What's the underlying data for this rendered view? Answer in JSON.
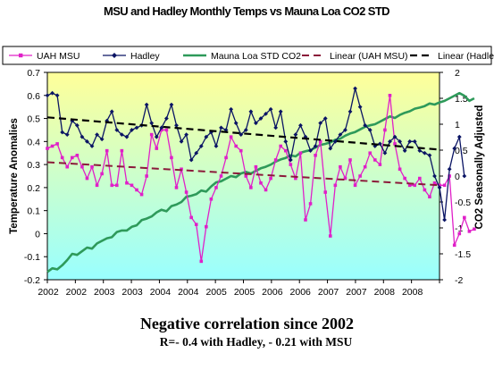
{
  "colors": {
    "uah": "#e020c8",
    "hadley": "#0a1464",
    "co2": "#2e9a5a",
    "linear_uah": "#8b1a3a",
    "linear_hadley": "#000000",
    "bg_top": "#ffff99",
    "bg_bottom": "#99ffff"
  },
  "caption": {
    "main": "Negative correlation since 2002",
    "sub": "R=- 0.4 with Hadley, - 0.21 with MSU"
  },
  "chart_data": {
    "type": "line",
    "title": "MSU and Hadley Monthly Temps vs Mauna Loa CO2 STD",
    "ylabel": "Temperature Anomalies",
    "y2label": "CO2 Seasonally  Adjusted",
    "ylim": [
      -0.2,
      0.7
    ],
    "y2lim": [
      -2,
      2
    ],
    "yticks": [
      -0.2,
      -0.1,
      0,
      0.1,
      0.2,
      0.3,
      0.4,
      0.5,
      0.6,
      0.7
    ],
    "y2ticks": [
      -2,
      -1.5,
      -1,
      -0.5,
      0,
      0.5,
      1,
      1.5,
      2
    ],
    "xtick_labels": [
      "2002",
      "2002",
      "2003",
      "2003",
      "2004",
      "2004",
      "2005",
      "2005",
      "2006",
      "2006",
      "2007",
      "2007",
      "2008",
      "2008"
    ],
    "xlim": [
      2002.0,
      2008.58
    ],
    "grid": false,
    "legend_position": "top",
    "series": [
      {
        "name": "UAH MSU",
        "axis": "left",
        "x_start": 2002.0,
        "x_step": 0.0833,
        "values": [
          0.37,
          0.38,
          0.39,
          0.33,
          0.29,
          0.33,
          0.34,
          0.29,
          0.24,
          0.29,
          0.21,
          0.26,
          0.36,
          0.21,
          0.21,
          0.36,
          0.22,
          0.21,
          0.19,
          0.17,
          0.25,
          0.43,
          0.37,
          0.45,
          0.45,
          0.33,
          0.2,
          0.28,
          0.18,
          0.07,
          0.04,
          -0.12,
          0.03,
          0.15,
          0.2,
          0.25,
          0.33,
          0.42,
          0.38,
          0.36,
          0.25,
          0.2,
          0.29,
          0.22,
          0.19,
          0.24,
          0.32,
          0.38,
          0.36,
          0.3,
          0.24,
          0.35,
          0.06,
          0.13,
          0.34,
          0.4,
          0.18,
          -0.01,
          0.21,
          0.29,
          0.24,
          0.32,
          0.21,
          0.25,
          0.29,
          0.35,
          0.32,
          0.3,
          0.45,
          0.6,
          0.39,
          0.28,
          0.24,
          0.21,
          0.21,
          0.24,
          0.19,
          0.16,
          0.22,
          0.21,
          0.21,
          0.25,
          -0.05,
          0.0,
          0.07,
          0.01,
          0.02
        ]
      },
      {
        "name": "Hadley",
        "axis": "left",
        "x_start": 2002.0,
        "x_step": 0.0833,
        "values": [
          0.6,
          0.61,
          0.6,
          0.44,
          0.43,
          0.49,
          0.47,
          0.42,
          0.4,
          0.38,
          0.43,
          0.41,
          0.49,
          0.53,
          0.45,
          0.43,
          0.42,
          0.45,
          0.46,
          0.47,
          0.56,
          0.48,
          0.42,
          0.46,
          0.5,
          0.56,
          0.47,
          0.4,
          0.43,
          0.32,
          0.35,
          0.38,
          0.42,
          0.44,
          0.38,
          0.46,
          0.45,
          0.54,
          0.48,
          0.43,
          0.45,
          0.53,
          0.48,
          0.5,
          0.52,
          0.54,
          0.46,
          0.53,
          0.4,
          0.32,
          0.43,
          0.47,
          0.42,
          0.36,
          0.38,
          0.48,
          0.5,
          0.37,
          0.4,
          0.43,
          0.45,
          0.53,
          0.63,
          0.55,
          0.47,
          0.45,
          0.38,
          0.39,
          0.35,
          0.4,
          0.42,
          0.4,
          0.36,
          0.4,
          0.4,
          0.36,
          0.35,
          0.34,
          0.25,
          0.2,
          0.06,
          0.28,
          0.37,
          0.42,
          0.25
        ]
      },
      {
        "name": "Mauna Loa STD CO2",
        "axis": "right",
        "x_start": 2002.0,
        "x_step": 0.0833,
        "values": [
          -1.85,
          -1.78,
          -1.8,
          -1.72,
          -1.62,
          -1.5,
          -1.52,
          -1.45,
          -1.38,
          -1.4,
          -1.3,
          -1.25,
          -1.2,
          -1.18,
          -1.08,
          -1.05,
          -1.05,
          -0.98,
          -0.95,
          -0.85,
          -0.82,
          -0.78,
          -0.7,
          -0.65,
          -0.68,
          -0.58,
          -0.55,
          -0.5,
          -0.4,
          -0.38,
          -0.35,
          -0.28,
          -0.3,
          -0.2,
          -0.12,
          -0.1,
          -0.05,
          0.0,
          -0.02,
          0.05,
          0.08,
          0.05,
          0.1,
          0.15,
          0.18,
          0.22,
          0.28,
          0.32,
          0.35,
          0.4,
          0.38,
          0.45,
          0.48,
          0.5,
          0.55,
          0.6,
          0.62,
          0.65,
          0.7,
          0.72,
          0.78,
          0.82,
          0.85,
          0.9,
          0.95,
          0.98,
          1.0,
          1.05,
          1.1,
          1.15,
          1.12,
          1.18,
          1.22,
          1.25,
          1.3,
          1.32,
          1.35,
          1.4,
          1.38,
          1.42,
          1.45,
          1.5,
          1.55,
          1.6,
          1.55,
          1.45,
          1.5
        ]
      },
      {
        "name": "Linear (UAH MSU)",
        "axis": "left",
        "x": [
          2002.0,
          2008.58
        ],
        "values": [
          0.31,
          0.21
        ]
      },
      {
        "name": "Linear (Hadley)",
        "axis": "left",
        "x": [
          2002.0,
          2008.58
        ],
        "values": [
          0.505,
          0.365
        ]
      }
    ]
  }
}
